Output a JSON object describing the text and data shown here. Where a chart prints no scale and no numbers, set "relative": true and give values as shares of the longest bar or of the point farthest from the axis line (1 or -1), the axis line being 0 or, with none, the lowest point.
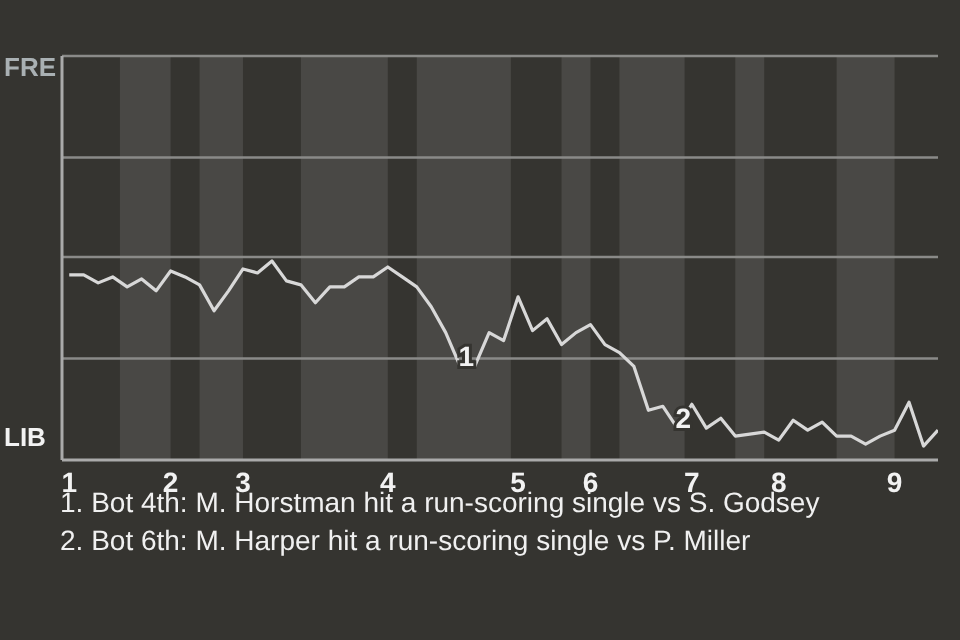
{
  "chart_data": {
    "type": "line",
    "relative": true,
    "categories": [
      "1",
      null,
      null,
      null,
      null,
      null,
      null,
      "2",
      null,
      null,
      null,
      null,
      "3",
      null,
      null,
      null,
      null,
      null,
      null,
      null,
      null,
      null,
      "4",
      null,
      null,
      null,
      null,
      null,
      null,
      null,
      null,
      "5",
      null,
      null,
      null,
      null,
      "6",
      null,
      null,
      null,
      null,
      null,
      null,
      "7",
      null,
      null,
      null,
      null,
      null,
      "8",
      null,
      null,
      null,
      null,
      null,
      null,
      null,
      "9",
      null,
      null,
      null
    ],
    "series": [
      {
        "color": "#d8d8d8",
        "values": [
          0.93,
          0.93,
          0.89,
          0.92,
          0.87,
          0.91,
          0.85,
          0.95,
          0.92,
          0.88,
          0.75,
          0.85,
          0.96,
          0.94,
          1,
          0.9,
          0.88,
          0.79,
          0.87,
          0.87,
          0.92,
          0.92,
          0.97,
          0.92,
          0.87,
          0.77,
          0.64,
          0.47,
          0.47,
          0.64,
          0.6,
          0.82,
          0.65,
          0.71,
          0.58,
          0.64,
          0.68,
          0.58,
          0.54,
          0.47,
          0.25,
          0.27,
          0.16,
          0.28,
          0.16,
          0.21,
          0.12,
          0.13,
          0.14,
          0.1,
          0.2,
          0.15,
          0.19,
          0.12,
          0.12,
          0.08,
          0.12,
          0.15,
          0.29,
          0.07,
          0.15
        ]
      }
    ],
    "ref_lines": [
      {
        "axis": "y",
        "value": 0.51,
        "color": "#8a8a88"
      },
      {
        "axis": "y",
        "value": 1.02,
        "color": "#8a8a88"
      },
      {
        "axis": "y",
        "value": 1.52,
        "color": "#8a8a88"
      }
    ],
    "annotations": [
      "FRE",
      "LIB",
      "1",
      "2",
      "1. Bot 4th: M. Horstman hit a run-scoring single vs S. Godsey",
      "2. Bot 6th: M. Harper hit a run-scoring single vs P. Miller"
    ]
  }
}
